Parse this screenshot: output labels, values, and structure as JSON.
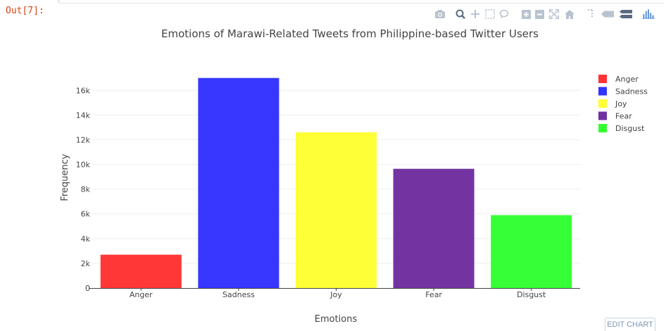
{
  "cell": {
    "out_prompt": "Out[7]:"
  },
  "modebar": {
    "icons": [
      "camera-icon",
      "zoom-icon",
      "pan-icon",
      "box-select-icon",
      "lasso-icon",
      "zoom-in-icon",
      "zoom-out-icon",
      "autoscale-icon",
      "home-icon",
      "spike-lines-icon",
      "hover-closest-icon",
      "hover-compare-icon",
      "plotly-logo-icon"
    ]
  },
  "edit_chart_label": "EDIT CHART",
  "chart_data": {
    "type": "bar",
    "title": "Emotions of Marawi-Related Tweets from Philippine-based Twitter Users",
    "xlabel": "Emotions",
    "ylabel": "Frequency",
    "categories": [
      "Anger",
      "Sadness",
      "Joy",
      "Fear",
      "Disgust"
    ],
    "series": [
      {
        "name": "Anger",
        "category": "Anger",
        "value": 2700,
        "color": "#ff3333"
      },
      {
        "name": "Sadness",
        "category": "Sadness",
        "value": 17000,
        "color": "#3333ff"
      },
      {
        "name": "Joy",
        "category": "Joy",
        "value": 12600,
        "color": "#ffff33"
      },
      {
        "name": "Fear",
        "category": "Fear",
        "value": 9650,
        "color": "#7030a0"
      },
      {
        "name": "Disgust",
        "category": "Disgust",
        "value": 5900,
        "color": "#33ff33"
      }
    ],
    "yticks": [
      0,
      2000,
      4000,
      6000,
      8000,
      10000,
      12000,
      14000,
      16000
    ],
    "ytick_labels": [
      "0",
      "2k",
      "4k",
      "6k",
      "8k",
      "10k",
      "12k",
      "14k",
      "16k"
    ],
    "ylim": [
      0,
      17895
    ],
    "grid": true,
    "legend_position": "top-right"
  }
}
